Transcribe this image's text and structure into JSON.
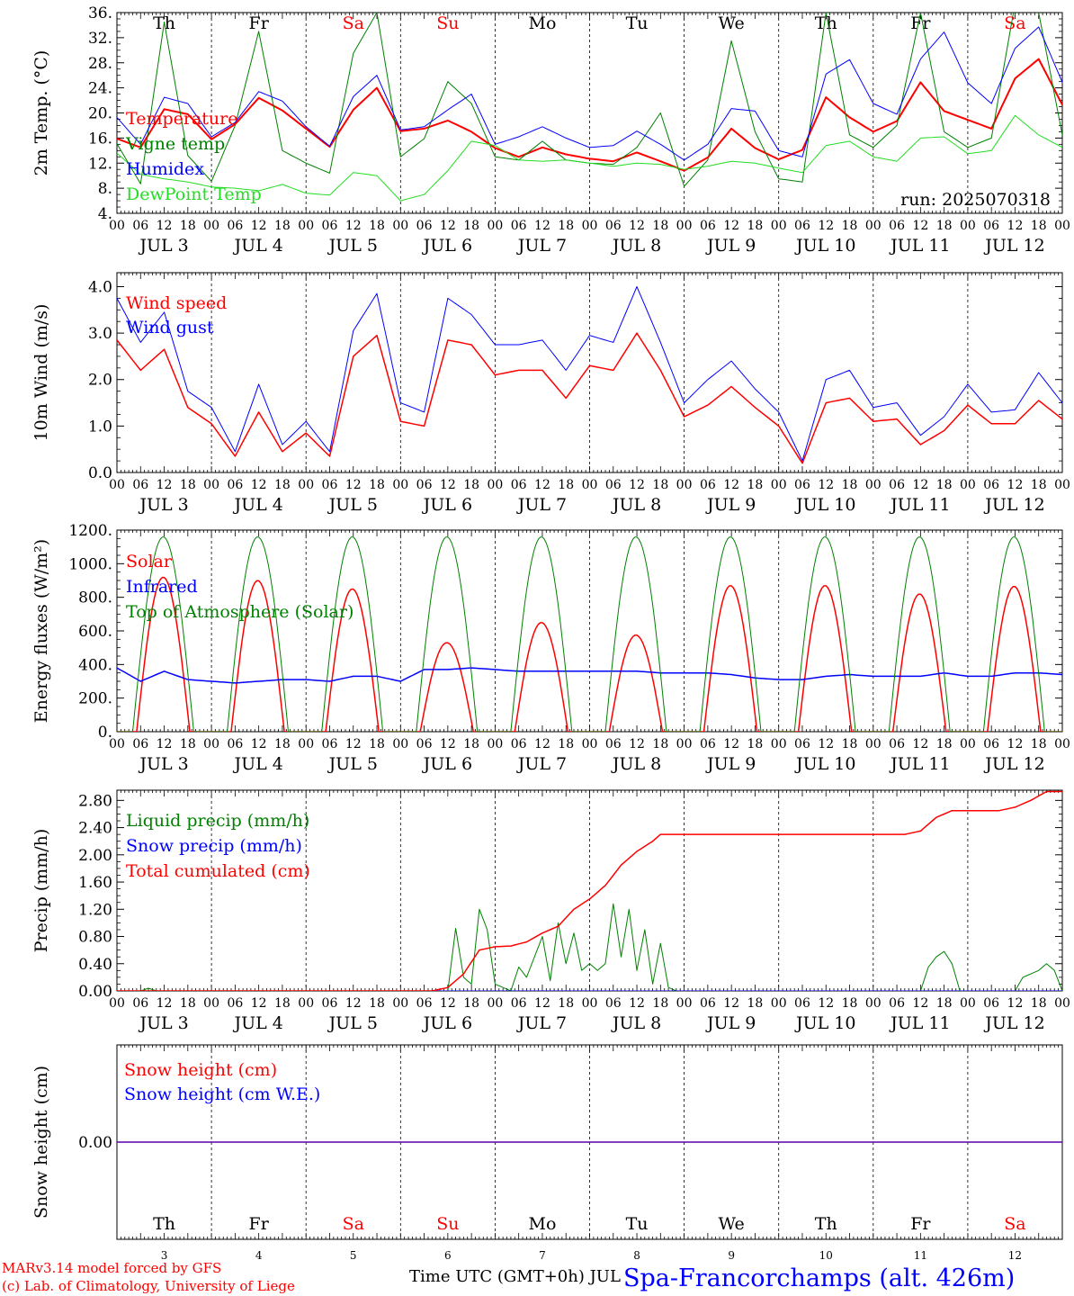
{
  "colors": {
    "red": "#ff0000",
    "green": "#008000",
    "blue": "#0000ff",
    "lightgreen": "#22dd22",
    "axis": "#000000"
  },
  "days": [
    {
      "abbr": "Th",
      "weekend": false,
      "date": "JUL  3",
      "num": "3"
    },
    {
      "abbr": "Fr",
      "weekend": false,
      "date": "JUL  4",
      "num": "4"
    },
    {
      "abbr": "Sa",
      "weekend": true,
      "date": "JUL  5",
      "num": "5"
    },
    {
      "abbr": "Su",
      "weekend": true,
      "date": "JUL  6",
      "num": "6"
    },
    {
      "abbr": "Mo",
      "weekend": false,
      "date": "JUL  7",
      "num": "7"
    },
    {
      "abbr": "Tu",
      "weekend": false,
      "date": "JUL  8",
      "num": "8"
    },
    {
      "abbr": "We",
      "weekend": false,
      "date": "JUL  9",
      "num": "9"
    },
    {
      "abbr": "Th",
      "weekend": false,
      "date": "JUL 10",
      "num": "10"
    },
    {
      "abbr": "Fr",
      "weekend": false,
      "date": "JUL 11",
      "num": "11"
    },
    {
      "abbr": "Sa",
      "weekend": true,
      "date": "JUL 12",
      "num": "12"
    }
  ],
  "hour_ticks": [
    "00",
    "06",
    "12",
    "18"
  ],
  "footer": {
    "model_line1": "MARv3.14 model forced by GFS",
    "model_line2": "(c) Lab. of Climatology, University of Liege",
    "xlabel": "Time UTC (GMT+0h) JUL",
    "station": "Spa-Francorchamps (alt. 426m)"
  },
  "chart_data": [
    {
      "id": "temperature",
      "type": "line",
      "ylabel": "2m Temp. (°C)",
      "ylim": [
        4,
        36
      ],
      "ytick_labels": [
        "4.",
        "8.",
        "12.",
        "16.",
        "20.",
        "24.",
        "28.",
        "32.",
        "36."
      ],
      "show_day_abbr": true,
      "annotation": "run: 2025070318",
      "x_unit": "hours since JUL 3 00 UTC",
      "series": [
        {
          "name": "Temperature",
          "color": "red",
          "width": 2,
          "x": [
            0,
            6,
            12,
            18,
            24,
            30,
            36,
            42,
            48,
            54,
            60,
            66,
            72,
            78,
            84,
            90,
            96,
            102,
            108,
            114,
            120,
            126,
            132,
            138,
            144,
            150,
            156,
            162,
            168,
            174,
            180,
            186,
            192,
            198,
            204,
            210,
            216,
            222,
            228,
            234,
            240
          ],
          "y": [
            15.9,
            14.5,
            20.6,
            19.8,
            15.8,
            18.2,
            22.4,
            20.4,
            17.5,
            14.6,
            20.5,
            24.0,
            17.1,
            17.5,
            18.8,
            17.0,
            14.4,
            13.0,
            14.5,
            13.4,
            12.7,
            12.3,
            13.7,
            12.3,
            10.8,
            12.9,
            17.5,
            14.4,
            12.6,
            14.1,
            22.5,
            19.3,
            17.0,
            18.7,
            24.9,
            20.3,
            18.9,
            17.5,
            25.5,
            28.6,
            21.3
          ]
        },
        {
          "name": "Vigne temp",
          "color": "green",
          "width": 1,
          "x": [
            0,
            6,
            12,
            18,
            24,
            30,
            36,
            42,
            48,
            54,
            60,
            66,
            72,
            78,
            84,
            90,
            96,
            102,
            108,
            114,
            120,
            126,
            132,
            138,
            144,
            150,
            156,
            162,
            168,
            174,
            180,
            186,
            192,
            198,
            204,
            210,
            216,
            222,
            228,
            234,
            240
          ],
          "y": [
            15.1,
            8.7,
            34.5,
            13.2,
            9.1,
            18.0,
            33.0,
            14.0,
            12.0,
            10.4,
            29.5,
            36.0,
            13.0,
            15.9,
            25.0,
            21.5,
            13.0,
            12.5,
            15.5,
            12.5,
            12.0,
            11.8,
            14.5,
            20.0,
            8.3,
            12.5,
            31.5,
            17.0,
            9.5,
            9.0,
            36.0,
            16.5,
            14.5,
            18.0,
            36.0,
            17.0,
            14.5,
            16.0,
            37.5,
            36.0,
            16.5
          ]
        },
        {
          "name": "Humidex",
          "color": "blue",
          "width": 1,
          "x": [
            0,
            6,
            12,
            18,
            24,
            30,
            36,
            42,
            48,
            54,
            60,
            66,
            72,
            78,
            84,
            90,
            96,
            102,
            108,
            114,
            120,
            126,
            132,
            138,
            144,
            150,
            156,
            162,
            168,
            174,
            180,
            186,
            192,
            198,
            204,
            210,
            216,
            222,
            228,
            234,
            240
          ],
          "y": [
            19.3,
            15.0,
            22.5,
            21.5,
            16.2,
            18.5,
            23.4,
            21.9,
            17.8,
            14.7,
            22.6,
            26.0,
            17.3,
            17.8,
            20.5,
            23.0,
            15.0,
            16.2,
            17.8,
            16.0,
            14.5,
            14.8,
            17.1,
            15.0,
            12.5,
            15.0,
            20.7,
            20.3,
            14.0,
            13.0,
            26.2,
            28.5,
            21.5,
            19.8,
            28.6,
            32.9,
            24.8,
            21.5,
            30.3,
            33.7,
            24.9
          ]
        },
        {
          "name": "DewPoint Temp",
          "color": "lightgreen",
          "width": 1,
          "x": [
            0,
            6,
            12,
            18,
            24,
            30,
            36,
            42,
            48,
            54,
            60,
            66,
            72,
            78,
            84,
            90,
            96,
            102,
            108,
            114,
            120,
            126,
            132,
            138,
            144,
            150,
            156,
            162,
            168,
            174,
            180,
            186,
            192,
            198,
            204,
            210,
            216,
            222,
            228,
            234,
            240
          ],
          "y": [
            13.6,
            10.2,
            9.5,
            9.0,
            8.2,
            8.0,
            7.6,
            8.6,
            7.2,
            6.9,
            10.5,
            10.0,
            6.0,
            7.0,
            10.8,
            15.5,
            14.8,
            12.5,
            12.3,
            12.5,
            12.0,
            11.5,
            12.0,
            11.8,
            11.0,
            11.5,
            12.3,
            12.0,
            11.2,
            10.5,
            14.8,
            15.5,
            13.0,
            12.3,
            16.0,
            16.2,
            13.5,
            14.0,
            19.6,
            16.5,
            14.5
          ]
        }
      ]
    },
    {
      "id": "wind",
      "type": "line",
      "ylabel": "10m Wind (m/s)",
      "ylim": [
        0,
        4.3
      ],
      "ytick_labels": [
        "0.0",
        "1.0",
        "2.0",
        "3.0",
        "4.0"
      ],
      "ytick_values": [
        0,
        1,
        2,
        3,
        4
      ],
      "x_unit": "hours since JUL 3 00 UTC",
      "series": [
        {
          "name": "Wind speed",
          "color": "red",
          "width": 1.5,
          "x": [
            0,
            6,
            12,
            18,
            24,
            30,
            36,
            42,
            48,
            54,
            60,
            66,
            72,
            78,
            84,
            90,
            96,
            102,
            108,
            114,
            120,
            126,
            132,
            138,
            144,
            150,
            156,
            162,
            168,
            174,
            180,
            186,
            192,
            198,
            204,
            210,
            216,
            222,
            228,
            234,
            240
          ],
          "y": [
            2.85,
            2.2,
            2.65,
            1.4,
            1.05,
            0.35,
            1.3,
            0.45,
            0.85,
            0.35,
            2.5,
            2.95,
            1.1,
            1.0,
            2.85,
            2.75,
            2.1,
            2.2,
            2.2,
            1.6,
            2.3,
            2.2,
            3.0,
            2.2,
            1.2,
            1.45,
            1.85,
            1.4,
            1.0,
            0.2,
            1.5,
            1.6,
            1.1,
            1.15,
            0.6,
            0.9,
            1.45,
            1.05,
            1.05,
            1.55,
            1.15
          ]
        },
        {
          "name": "Wind gust",
          "color": "blue",
          "width": 1,
          "x": [
            0,
            6,
            12,
            18,
            24,
            30,
            36,
            42,
            48,
            54,
            60,
            66,
            72,
            78,
            84,
            90,
            96,
            102,
            108,
            114,
            120,
            126,
            132,
            138,
            144,
            150,
            156,
            162,
            168,
            174,
            180,
            186,
            192,
            198,
            204,
            210,
            216,
            222,
            228,
            234,
            240
          ],
          "y": [
            3.75,
            2.8,
            3.45,
            1.75,
            1.4,
            0.45,
            1.9,
            0.6,
            1.1,
            0.45,
            3.05,
            3.85,
            1.5,
            1.3,
            3.75,
            3.4,
            2.75,
            2.75,
            2.85,
            2.2,
            2.95,
            2.8,
            4.0,
            2.8,
            1.5,
            2.0,
            2.4,
            1.8,
            1.3,
            0.25,
            2.0,
            2.2,
            1.4,
            1.5,
            0.8,
            1.2,
            1.9,
            1.3,
            1.35,
            2.15,
            1.5
          ]
        }
      ]
    },
    {
      "id": "energy",
      "type": "line",
      "ylabel": "Energy fluxes (W/m²)",
      "ylim": [
        0,
        1200
      ],
      "ytick_labels": [
        "0.",
        "200.",
        "400.",
        "600.",
        "800.",
        "1000.",
        "1200."
      ],
      "ytick_values": [
        0,
        200,
        400,
        600,
        800,
        1000,
        1200
      ],
      "x_unit": "hours since JUL 3 00 UTC",
      "toa_daily_peak": 1160,
      "toa_sunrise_h": 4,
      "toa_sunset_h": 19.5,
      "series": [
        {
          "name": "Solar",
          "color": "red",
          "width": 1.5,
          "daily_peak": [
            920,
            900,
            850,
            530,
            650,
            575,
            870,
            870,
            820,
            865
          ]
        },
        {
          "name": "Infrared",
          "color": "blue",
          "width": 1.5,
          "x": [
            0,
            6,
            12,
            18,
            24,
            30,
            36,
            42,
            48,
            54,
            60,
            66,
            72,
            78,
            84,
            90,
            96,
            102,
            108,
            114,
            120,
            126,
            132,
            138,
            144,
            150,
            156,
            162,
            168,
            174,
            180,
            186,
            192,
            198,
            204,
            210,
            216,
            222,
            228,
            234,
            240
          ],
          "y": [
            380,
            300,
            360,
            310,
            300,
            290,
            300,
            310,
            310,
            300,
            330,
            330,
            300,
            370,
            370,
            380,
            370,
            360,
            360,
            360,
            360,
            360,
            360,
            350,
            350,
            350,
            340,
            320,
            310,
            310,
            330,
            340,
            330,
            330,
            330,
            350,
            330,
            330,
            350,
            350,
            340
          ]
        },
        {
          "name": "Top of Atmosphere (Solar)",
          "color": "green",
          "width": 1
        }
      ]
    },
    {
      "id": "precip",
      "type": "line",
      "ylabel": "Precip (mm/h)",
      "ylim": [
        0,
        2.95
      ],
      "ytick_labels": [
        "0.00",
        "0.40",
        "0.80",
        "1.20",
        "1.60",
        "2.00",
        "2.40",
        "2.80"
      ],
      "ytick_values": [
        0,
        0.4,
        0.8,
        1.2,
        1.6,
        2.0,
        2.4,
        2.8
      ],
      "x_unit": "hours since JUL 3 00 UTC",
      "series": [
        {
          "name": "Liquid precip (mm/h)",
          "color": "green",
          "width": 1,
          "x": [
            0,
            6,
            8,
            10,
            84,
            86,
            88,
            90,
            92,
            94,
            96,
            98,
            100,
            102,
            104,
            108,
            110,
            112,
            114,
            116,
            118,
            120,
            122,
            124,
            126,
            128,
            130,
            132,
            134,
            136,
            138,
            140,
            142,
            144,
            146,
            148,
            204,
            206,
            208,
            210,
            212,
            214,
            216,
            228,
            230,
            232,
            234,
            236,
            238,
            240
          ],
          "y": [
            0,
            0,
            0.04,
            0,
            0,
            0.92,
            0.2,
            0.1,
            1.2,
            0.9,
            0.1,
            0.05,
            0,
            0.35,
            0.2,
            0.8,
            0.15,
            1.0,
            0.4,
            0.85,
            0.3,
            0.4,
            0.3,
            0.4,
            1.28,
            0.5,
            1.2,
            0.3,
            0.9,
            0.1,
            0.7,
            0.05,
            0,
            0,
            0,
            0,
            0,
            0.35,
            0.5,
            0.58,
            0.4,
            0,
            0,
            0,
            0.2,
            0.25,
            0.3,
            0.4,
            0.3,
            0
          ]
        },
        {
          "name": "Snow precip (mm/h)",
          "color": "blue",
          "width": 1,
          "x": [
            0,
            240
          ],
          "y": [
            0,
            0
          ]
        },
        {
          "name": "Total cumulated (cm)",
          "color": "red",
          "width": 1.5,
          "x": [
            0,
            80,
            84,
            88,
            92,
            96,
            100,
            104,
            108,
            112,
            116,
            120,
            124,
            128,
            132,
            136,
            138,
            144,
            200,
            204,
            208,
            212,
            224,
            228,
            232,
            236,
            240
          ],
          "y": [
            0,
            0,
            0.05,
            0.25,
            0.6,
            0.65,
            0.66,
            0.72,
            0.85,
            0.95,
            1.2,
            1.35,
            1.55,
            1.85,
            2.05,
            2.2,
            2.3,
            2.3,
            2.3,
            2.35,
            2.55,
            2.65,
            2.65,
            2.7,
            2.8,
            2.93,
            2.93
          ]
        }
      ]
    },
    {
      "id": "snow",
      "type": "line",
      "ylabel": "Snow height (cm)",
      "ylim": [
        -1,
        1
      ],
      "ytick_labels": [
        "0.00"
      ],
      "ytick_values": [
        0
      ],
      "x_unit": "hours since JUL 3 00 UTC",
      "series": [
        {
          "name": "Snow height (cm)",
          "color": "red",
          "width": 1.5,
          "x": [
            0,
            240
          ],
          "y": [
            0,
            0
          ]
        },
        {
          "name": "Snow height (cm W.E.)",
          "color": "blue",
          "width": 1,
          "x": [
            0,
            240
          ],
          "y": [
            0,
            0
          ]
        }
      ]
    }
  ]
}
